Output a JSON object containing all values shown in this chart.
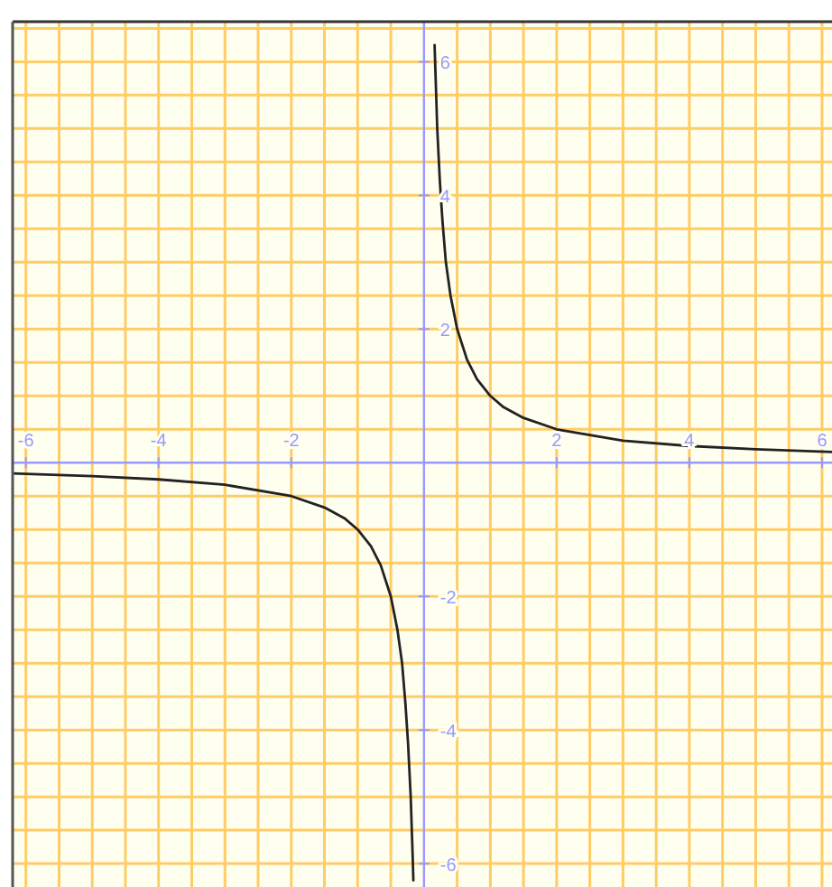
{
  "chart_data": {
    "type": "line",
    "xlim": [
      -6.2,
      6.15
    ],
    "ylim": [
      -6.35,
      6.6
    ],
    "grid": true,
    "marker": "none",
    "line_style": "solid",
    "xticks": [
      -6,
      {
        "value": -5.5,
        "label": null
      },
      {
        "value": -5,
        "label": null
      },
      {
        "value": -4.5,
        "label": null
      },
      -4,
      {
        "value": -3.5,
        "label": null
      },
      {
        "value": -3,
        "label": null
      },
      {
        "value": -2.5,
        "label": null
      },
      -2,
      {
        "value": -1.5,
        "label": null
      },
      {
        "value": -1,
        "label": null
      },
      {
        "value": -0.5,
        "label": null
      },
      {
        "value": 0.5,
        "label": null
      },
      {
        "value": 1,
        "label": null
      },
      {
        "value": 1.5,
        "label": null
      },
      2,
      {
        "value": 2.5,
        "label": null
      },
      {
        "value": 3,
        "label": null
      },
      {
        "value": 3.5,
        "label": null
      },
      4,
      {
        "value": 4.5,
        "label": null
      },
      {
        "value": 5,
        "label": null
      },
      {
        "value": 5.5,
        "label": null
      },
      6
    ],
    "yticks": [
      -6,
      {
        "value": -5.5,
        "label": null
      },
      {
        "value": -5,
        "label": null
      },
      {
        "value": -4.5,
        "label": null
      },
      -4,
      {
        "value": -3.5,
        "label": null
      },
      {
        "value": -3,
        "label": null
      },
      {
        "value": -2.5,
        "label": null
      },
      -2,
      {
        "value": -1.5,
        "label": null
      },
      {
        "value": -1,
        "label": null
      },
      {
        "value": -0.5,
        "label": null
      },
      {
        "value": 0.5,
        "label": null
      },
      {
        "value": 1,
        "label": null
      },
      {
        "value": 1.5,
        "label": null
      },
      2,
      {
        "value": 2.5,
        "label": null
      },
      {
        "value": 3,
        "label": null
      },
      {
        "value": 3.5,
        "label": null
      },
      4,
      {
        "value": 4.5,
        "label": null
      },
      {
        "value": 5,
        "label": null
      },
      {
        "value": 5.5,
        "label": null
      },
      6,
      {
        "value": 6.5,
        "label": null
      }
    ],
    "series": [
      {
        "color": "#222222",
        "x": [
          -6.2,
          -5,
          -4,
          -3,
          -2,
          -1.5,
          -1.2,
          -1,
          -0.8,
          -0.65,
          -0.5,
          -0.4,
          -0.33,
          -0.28,
          -0.24,
          -0.2,
          -0.17,
          -0.16,
          0,
          0.16,
          0.2,
          0.24,
          0.28,
          0.33,
          0.4,
          0.5,
          0.65,
          0.8,
          1,
          1.2,
          1.5,
          2,
          3,
          4,
          5,
          6.15
        ],
        "values": [
          -0.16,
          -0.2,
          -0.25,
          -0.33,
          -0.5,
          -0.67,
          -0.83,
          -1,
          -1.25,
          -1.54,
          -2,
          -2.5,
          -3,
          -3.6,
          -4.2,
          -5,
          -5.9,
          -6.25,
          null,
          6.25,
          5,
          4.2,
          3.6,
          3,
          2.5,
          2,
          1.54,
          1.25,
          1,
          0.83,
          0.67,
          0.5,
          0.33,
          0.25,
          0.2,
          0.16
        ]
      }
    ]
  }
}
